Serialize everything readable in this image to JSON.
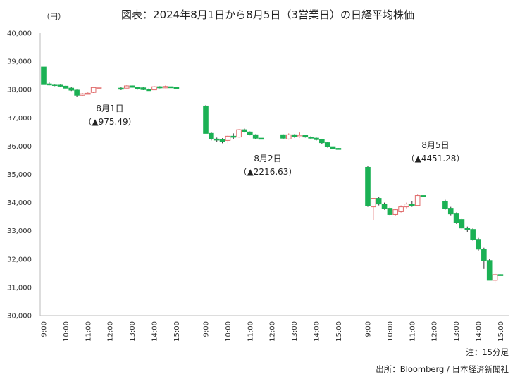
{
  "title": "図表：2024年8月1日から8月5日（3営業日）の日経平均株価",
  "unit_label": "（円）",
  "note": "注：15分足",
  "source": "出所：Bloomberg / 日本経済新聞社",
  "colors": {
    "up": "#e06a6a",
    "down": "#1bb154",
    "axis": "#bbbbbb",
    "gap_line": "#cccccc"
  },
  "chart_data": {
    "type": "candlestick",
    "interval": "15min",
    "ylim": [
      30000,
      40000
    ],
    "yticks": [
      "30,000",
      "31,000",
      "32,000",
      "33,000",
      "34,000",
      "35,000",
      "36,000",
      "37,000",
      "38,000",
      "39,000",
      "40,000"
    ],
    "grid": false,
    "days": [
      {
        "date_label": "8月1日",
        "change_label": "（▲975.49）",
        "xticks": [
          "9:00",
          "10:00",
          "11:00",
          "12:00",
          "13:00",
          "14:00",
          "15:00"
        ],
        "sessions": [
          {
            "candles": [
              {
                "t": "9:00",
                "o": 38800,
                "h": 38800,
                "l": 38200,
                "c": 38200
              },
              {
                "t": "9:15",
                "o": 38200,
                "h": 38250,
                "l": 38150,
                "c": 38180
              },
              {
                "t": "9:30",
                "o": 38180,
                "h": 38200,
                "l": 38120,
                "c": 38150
              },
              {
                "t": "9:45",
                "o": 38180,
                "h": 38200,
                "l": 38100,
                "c": 38120
              },
              {
                "t": "10:00",
                "o": 38120,
                "h": 38150,
                "l": 38020,
                "c": 38050
              },
              {
                "t": "10:15",
                "o": 38050,
                "h": 38080,
                "l": 37950,
                "c": 37980
              },
              {
                "t": "10:30",
                "o": 37980,
                "h": 38000,
                "l": 37750,
                "c": 37800
              },
              {
                "t": "10:45",
                "o": 37800,
                "h": 37880,
                "l": 37780,
                "c": 37850
              },
              {
                "t": "11:00",
                "o": 37860,
                "h": 37900,
                "l": 37840,
                "c": 37870
              },
              {
                "t": "11:15",
                "o": 37900,
                "h": 38100,
                "l": 37880,
                "c": 38070
              },
              {
                "t": "11:30",
                "o": 38070,
                "h": 38090,
                "l": 38060,
                "c": 38075
              }
            ]
          },
          {
            "candles": [
              {
                "t": "12:30",
                "o": 38050,
                "h": 38080,
                "l": 37980,
                "c": 38020
              },
              {
                "t": "12:45",
                "o": 38050,
                "h": 38150,
                "l": 38040,
                "c": 38130
              },
              {
                "t": "13:00",
                "o": 38130,
                "h": 38150,
                "l": 38060,
                "c": 38080
              },
              {
                "t": "13:15",
                "o": 38080,
                "h": 38100,
                "l": 38000,
                "c": 38040
              },
              {
                "t": "13:30",
                "o": 38060,
                "h": 38080,
                "l": 37980,
                "c": 38000
              },
              {
                "t": "13:45",
                "o": 38000,
                "h": 38040,
                "l": 37960,
                "c": 37990
              },
              {
                "t": "14:00",
                "o": 37990,
                "h": 38120,
                "l": 37980,
                "c": 38100
              },
              {
                "t": "14:15",
                "o": 38100,
                "h": 38120,
                "l": 38040,
                "c": 38060
              },
              {
                "t": "14:30",
                "o": 38060,
                "h": 38140,
                "l": 38050,
                "c": 38110
              },
              {
                "t": "14:45",
                "o": 38100,
                "h": 38120,
                "l": 38050,
                "c": 38070
              },
              {
                "t": "15:00",
                "o": 38080,
                "h": 38100,
                "l": 38060,
                "c": 38070
              }
            ]
          }
        ]
      },
      {
        "date_label": "8月2日",
        "change_label": "（▲2216.63）",
        "xticks": [
          "9:00",
          "10:00",
          "11:00",
          "12:00",
          "13:00",
          "14:00",
          "15:00"
        ],
        "sessions": [
          {
            "candles": [
              {
                "t": "9:00",
                "o": 37420,
                "h": 37450,
                "l": 36450,
                "c": 36450
              },
              {
                "t": "9:15",
                "o": 36450,
                "h": 36500,
                "l": 36200,
                "c": 36250
              },
              {
                "t": "9:30",
                "o": 36250,
                "h": 36300,
                "l": 36150,
                "c": 36230
              },
              {
                "t": "9:45",
                "o": 36230,
                "h": 36280,
                "l": 36100,
                "c": 36150
              },
              {
                "t": "10:00",
                "o": 36200,
                "h": 36400,
                "l": 36100,
                "c": 36350
              },
              {
                "t": "10:15",
                "o": 36350,
                "h": 36450,
                "l": 36250,
                "c": 36320
              },
              {
                "t": "10:30",
                "o": 36320,
                "h": 36600,
                "l": 36300,
                "c": 36580
              },
              {
                "t": "10:45",
                "o": 36580,
                "h": 36620,
                "l": 36480,
                "c": 36500
              },
              {
                "t": "11:00",
                "o": 36500,
                "h": 36520,
                "l": 36380,
                "c": 36400
              },
              {
                "t": "11:15",
                "o": 36400,
                "h": 36420,
                "l": 36250,
                "c": 36280
              },
              {
                "t": "11:30",
                "o": 36280,
                "h": 36300,
                "l": 36230,
                "c": 36250
              }
            ]
          },
          {
            "candles": [
              {
                "t": "12:30",
                "o": 36400,
                "h": 36420,
                "l": 36250,
                "c": 36280
              },
              {
                "t": "12:45",
                "o": 36250,
                "h": 36450,
                "l": 36230,
                "c": 36400
              },
              {
                "t": "13:00",
                "o": 36400,
                "h": 36420,
                "l": 36300,
                "c": 36330
              },
              {
                "t": "13:15",
                "o": 36330,
                "h": 36480,
                "l": 36300,
                "c": 36380
              },
              {
                "t": "13:30",
                "o": 36380,
                "h": 36400,
                "l": 36300,
                "c": 36320
              },
              {
                "t": "13:45",
                "o": 36320,
                "h": 36350,
                "l": 36250,
                "c": 36280
              },
              {
                "t": "14:00",
                "o": 36280,
                "h": 36300,
                "l": 36200,
                "c": 36230
              },
              {
                "t": "14:15",
                "o": 36230,
                "h": 36260,
                "l": 36080,
                "c": 36120
              },
              {
                "t": "14:30",
                "o": 36120,
                "h": 36150,
                "l": 35950,
                "c": 35980
              },
              {
                "t": "14:45",
                "o": 35980,
                "h": 36000,
                "l": 35900,
                "c": 35920
              },
              {
                "t": "15:00",
                "o": 35920,
                "h": 35930,
                "l": 35890,
                "c": 35910
              }
            ]
          }
        ]
      },
      {
        "date_label": "8月5日",
        "change_label": "（▲4451.28）",
        "xticks": [
          "9:00",
          "10:00",
          "11:00",
          "12:00",
          "13:00",
          "14:00",
          "15:00"
        ],
        "sessions": [
          {
            "candles": [
              {
                "t": "9:00",
                "o": 35250,
                "h": 35300,
                "l": 33850,
                "c": 33880
              },
              {
                "t": "9:15",
                "o": 33850,
                "h": 34150,
                "l": 33380,
                "c": 34150
              },
              {
                "t": "9:30",
                "o": 34150,
                "h": 34200,
                "l": 33900,
                "c": 33950
              },
              {
                "t": "9:45",
                "o": 33950,
                "h": 34000,
                "l": 33750,
                "c": 33800
              },
              {
                "t": "10:00",
                "o": 33800,
                "h": 33850,
                "l": 33550,
                "c": 33580
              },
              {
                "t": "10:15",
                "o": 33580,
                "h": 33780,
                "l": 33550,
                "c": 33750
              },
              {
                "t": "10:30",
                "o": 33680,
                "h": 33900,
                "l": 33650,
                "c": 33850
              },
              {
                "t": "10:45",
                "o": 33850,
                "h": 34000,
                "l": 33800,
                "c": 33950
              },
              {
                "t": "11:00",
                "o": 33950,
                "h": 34050,
                "l": 33850,
                "c": 33880
              },
              {
                "t": "11:15",
                "o": 33900,
                "h": 34280,
                "l": 33880,
                "c": 34250
              },
              {
                "t": "11:30",
                "o": 34250,
                "h": 34260,
                "l": 34200,
                "c": 34230
              }
            ]
          },
          {
            "candles": [
              {
                "t": "12:30",
                "o": 34050,
                "h": 34100,
                "l": 33750,
                "c": 33800
              },
              {
                "t": "12:45",
                "o": 33800,
                "h": 33850,
                "l": 33550,
                "c": 33600
              },
              {
                "t": "13:00",
                "o": 33600,
                "h": 33650,
                "l": 33250,
                "c": 33300
              },
              {
                "t": "13:15",
                "o": 33400,
                "h": 33450,
                "l": 33050,
                "c": 33100
              },
              {
                "t": "13:30",
                "o": 33100,
                "h": 33150,
                "l": 32950,
                "c": 33050
              },
              {
                "t": "13:45",
                "o": 33050,
                "h": 33100,
                "l": 32650,
                "c": 32700
              },
              {
                "t": "14:00",
                "o": 32700,
                "h": 32750,
                "l": 32300,
                "c": 32350
              },
              {
                "t": "14:15",
                "o": 32350,
                "h": 32400,
                "l": 31650,
                "c": 31950
              },
              {
                "t": "14:30",
                "o": 31950,
                "h": 32000,
                "l": 31250,
                "c": 31250
              },
              {
                "t": "14:45",
                "o": 31250,
                "h": 31500,
                "l": 31150,
                "c": 31450
              },
              {
                "t": "15:00",
                "o": 31450,
                "h": 31460,
                "l": 31420,
                "c": 31440
              }
            ]
          }
        ]
      }
    ]
  }
}
